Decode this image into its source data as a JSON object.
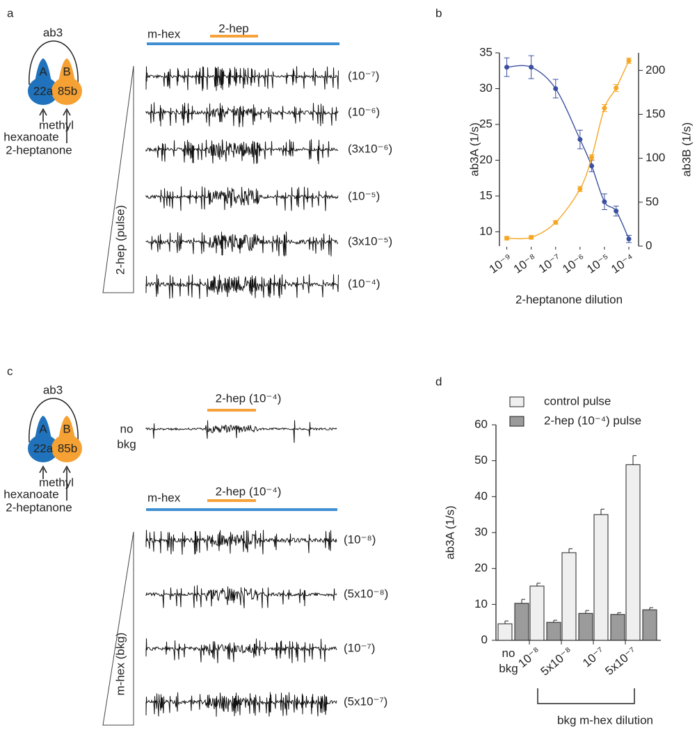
{
  "panel_labels": [
    "a",
    "b",
    "c",
    "d"
  ],
  "panel_a": {
    "diagram": {
      "title": "ab3",
      "neuron_a": "A",
      "neuron_b": "B",
      "receptor_a": "22a",
      "receptor_b": "85b",
      "odor_a": [
        "methyl",
        "hexanoate"
      ],
      "odor_b": "2-heptanone"
    },
    "background_label": "m-hex",
    "pulse_label": "2-hep",
    "trace_labels": [
      "(10⁻⁷)",
      "(10⁻⁶)",
      "(3x10⁻⁶)",
      "(10⁻⁵)",
      "(3x10⁻⁵)",
      "(10⁻⁴)"
    ],
    "ramp_label": "2-hep (pulse)"
  },
  "panel_c": {
    "diagram": {
      "title": "ab3",
      "neuron_a": "A",
      "neuron_b": "B",
      "receptor_a": "22a",
      "receptor_b": "85b",
      "odor_a": [
        "methyl",
        "hexanoate"
      ],
      "odor_b": "2-heptanone"
    },
    "no_bkg_label": [
      "no",
      "bkg"
    ],
    "no_bkg_pulse_label": "2-hep (10⁻⁴)",
    "background_label": "m-hex",
    "pulse_label": "2-hep (10⁻⁴)",
    "trace_labels": [
      "(10⁻⁸)",
      "(5x10⁻⁸)",
      "(10⁻⁷)",
      "(5x10⁻⁷)"
    ],
    "ramp_label": "m-hex (bkg)"
  },
  "chart_data": [
    {
      "type": "line",
      "x": [
        1e-09,
        1e-08,
        1e-07,
        1e-06,
        3e-06,
        1e-05,
        3e-05,
        0.0001
      ],
      "xscale": "log",
      "xlim": [
        5e-10,
        0.00025
      ],
      "xticks": [
        {
          "value": 1e-09,
          "label": "10⁻⁹"
        },
        {
          "value": 1e-08,
          "label": "10⁻⁸"
        },
        {
          "value": 1e-07,
          "label": "10⁻⁷"
        },
        {
          "value": 1e-06,
          "label": "10⁻⁶"
        },
        {
          "value": 1e-05,
          "label": "10⁻⁵"
        },
        {
          "value": 0.0001,
          "label": "10⁻⁴"
        }
      ],
      "xlabel": "2-heptanone dilution",
      "ylabel": "ab3A (1/s)",
      "ylim": [
        8,
        35
      ],
      "yticks": [
        10,
        15,
        20,
        25,
        30,
        35
      ],
      "y2label": "ab3B (1/s)",
      "y2lim": [
        0,
        220
      ],
      "y2ticks": [
        0,
        50,
        100,
        150,
        200
      ],
      "series": [
        {
          "color": "#3b4fa0",
          "values": [
            33,
            33,
            30,
            22.9,
            19.2,
            14.2,
            12.9,
            9
          ],
          "errors": [
            1.3,
            1.6,
            1.3,
            1.3,
            0.8,
            1.1,
            0.7,
            0.5
          ]
        },
        {
          "color": "#f5a623",
          "axis": "y2",
          "values": [
            9,
            10,
            27,
            65,
            101,
            157,
            180,
            211
          ],
          "errors": [
            2,
            2,
            2,
            3,
            3,
            4,
            4,
            3
          ]
        }
      ]
    },
    {
      "type": "bar",
      "categories": [
        "no bkg",
        "10⁻⁸",
        "5x10⁻⁸",
        "10⁻⁷",
        "5x10⁻⁷"
      ],
      "series": [
        {
          "name": "control pulse",
          "color": "#efefef",
          "values": [
            4.6,
            15.1,
            24.4,
            35,
            48.9
          ],
          "errors": [
            0.8,
            0.8,
            1.1,
            1.5,
            2.5
          ]
        },
        {
          "name": "2-hep (10⁻⁴) pulse",
          "color": "#9b9b9b",
          "values": [
            10.3,
            5,
            7.5,
            7.2,
            8.5
          ],
          "errors": [
            1.1,
            0.6,
            0.8,
            0.5,
            0.6
          ]
        }
      ],
      "ylim": [
        0,
        60
      ],
      "yticks": [
        0,
        10,
        20,
        30,
        40,
        50,
        60
      ],
      "ylabel": "ab3A (1/s)",
      "xlabel": "bkg m-hex dilution"
    }
  ]
}
